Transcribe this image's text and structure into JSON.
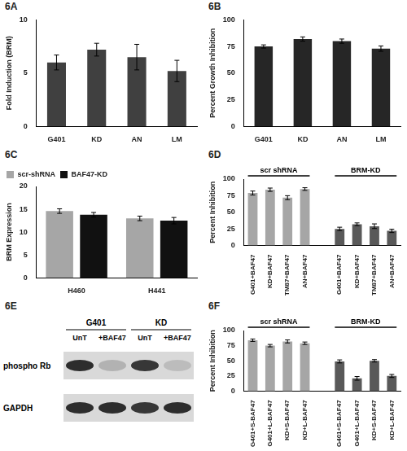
{
  "chart_data": [
    {
      "type": "bar",
      "title": "6A",
      "ylabel": "Fold Induction (BRM)",
      "categories": [
        "G401",
        "KD",
        "AN",
        "LM"
      ],
      "values": [
        6.0,
        7.2,
        6.5,
        5.2
      ],
      "errors": [
        0.7,
        0.6,
        1.2,
        1.0
      ],
      "color": "#404040",
      "ylim": [
        0,
        10
      ],
      "yticks": [
        0,
        5,
        10
      ],
      "grid": false
    },
    {
      "type": "bar",
      "title": "6B",
      "ylabel": "Percent Growth Inhibition",
      "categories": [
        "G401",
        "KD",
        "AN",
        "LM"
      ],
      "values": [
        75,
        82,
        80,
        73
      ],
      "errors": [
        1.5,
        2,
        2,
        2.5
      ],
      "color": "#262626",
      "ylim": [
        0,
        100
      ],
      "yticks": [
        0,
        25,
        50,
        75,
        100
      ],
      "grid": false
    },
    {
      "type": "bar",
      "title": "6C",
      "ylabel": "BRM Expression",
      "categories": [
        "H460",
        "H441"
      ],
      "series": [
        {
          "name": "scr-shRNA",
          "color": "#a6a6a6",
          "values": [
            14.6,
            13.0
          ],
          "errors": [
            0.5,
            0.5
          ]
        },
        {
          "name": "BAF47-KD",
          "color": "#111111",
          "values": [
            13.8,
            12.5
          ],
          "errors": [
            0.5,
            0.7
          ]
        }
      ],
      "ylim": [
        0,
        20
      ],
      "yticks": [
        0,
        5,
        10,
        15,
        20
      ],
      "grid": false,
      "legend": "upper left"
    },
    {
      "type": "bar",
      "title": "6D",
      "ylabel": "Percent Inhibition",
      "categories": [
        "G401+BAF47",
        "KD+BAF47",
        "TM87+BAF47",
        "AN+BAF47",
        null,
        "G401+BAF47",
        "KD+BAF47",
        "TM87+BAF47",
        "AN+BAF47"
      ],
      "series": [
        {
          "name": "scr shRNA",
          "color": "#a6a6a6",
          "values": [
            79,
            84,
            72,
            85,
            null,
            null,
            null,
            null,
            null
          ],
          "errors": [
            3,
            2.5,
            3,
            2,
            null,
            null,
            null,
            null,
            null
          ]
        },
        {
          "name": "BRM-KD",
          "color": "#595959",
          "values": [
            null,
            null,
            null,
            null,
            null,
            25,
            32,
            29,
            22
          ],
          "errors": [
            null,
            null,
            null,
            null,
            null,
            2.5,
            2,
            3.5,
            2.5
          ]
        }
      ],
      "ylim": [
        0,
        100
      ],
      "yticks": [
        0,
        25,
        50,
        75,
        100
      ],
      "grid": false
    },
    {
      "type": "bar",
      "title": "6F",
      "ylabel": "Percent Inhibition",
      "categories": [
        "G401+S-BAF47",
        "G401+L-BAF47",
        "KD+S-BAF47",
        "KD+L-BAF47",
        null,
        "G401+S-BAF47",
        "G401+L-BAF47",
        "KD+S-BAF47",
        "KD+L-BAF47"
      ],
      "series": [
        {
          "name": "scr shRNA",
          "color": "#a6a6a6",
          "values": [
            84,
            75,
            82,
            79,
            null,
            null,
            null,
            null,
            null
          ],
          "errors": [
            2,
            2,
            2.5,
            2,
            null,
            null,
            null,
            null,
            null
          ]
        },
        {
          "name": "BRM-KD",
          "color": "#595959",
          "values": [
            null,
            null,
            null,
            null,
            null,
            49,
            21,
            50,
            25
          ],
          "errors": [
            null,
            null,
            null,
            null,
            null,
            2.5,
            3,
            2,
            2.5
          ]
        }
      ],
      "ylim": [
        0,
        100
      ],
      "yticks": [
        0,
        25,
        50,
        75,
        100
      ],
      "grid": false
    }
  ],
  "blot": {
    "title": "6E",
    "groups": [
      {
        "name": "G401",
        "lanes": [
          "UnT",
          "+BAF47"
        ]
      },
      {
        "name": "KD",
        "lanes": [
          "UnT",
          "+BAF47"
        ]
      }
    ],
    "rows": [
      {
        "label": "phospho Rb",
        "intensity": [
          0.9,
          0.2,
          0.85,
          0.15
        ]
      },
      {
        "label": "GAPDH",
        "intensity": [
          0.9,
          0.9,
          0.85,
          0.9
        ]
      }
    ]
  }
}
